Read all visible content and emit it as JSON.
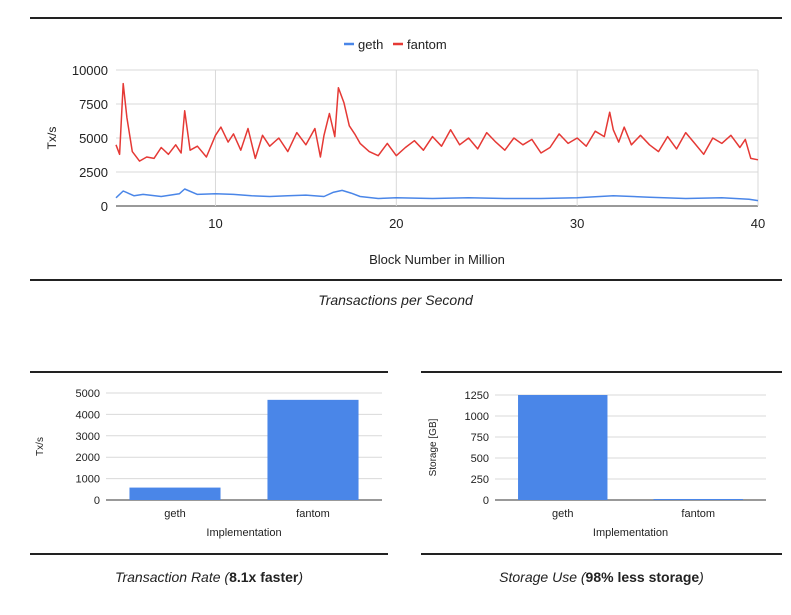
{
  "colors": {
    "geth": "#4a86e8",
    "fantom": "#e53935",
    "bar": "#4a86e8",
    "grid": "#d9d9d9"
  },
  "chart_data": [
    {
      "type": "line",
      "title": "",
      "xlabel": "Block Number in Million",
      "ylabel": "Tx/s",
      "xlim": [
        4.5,
        40
      ],
      "ylim": [
        0,
        10000
      ],
      "xticks": [
        "10",
        "20",
        "30",
        "40"
      ],
      "yticks": [
        "0",
        "2500",
        "5000",
        "7500",
        "10000"
      ],
      "legend": [
        "geth",
        "fantom"
      ],
      "legend_position": "top",
      "series": [
        {
          "name": "geth",
          "color": "#4a86e8",
          "x": [
            4.5,
            4.9,
            5.5,
            6,
            7,
            8,
            8.3,
            9,
            10,
            11,
            12,
            13,
            14,
            15,
            16,
            16.5,
            17,
            17.5,
            18,
            19,
            20,
            22,
            24,
            26,
            28,
            30,
            32,
            34,
            36,
            38,
            39.5,
            40
          ],
          "y": [
            600,
            1100,
            750,
            850,
            700,
            900,
            1250,
            850,
            900,
            850,
            750,
            700,
            750,
            800,
            700,
            1000,
            1150,
            950,
            700,
            550,
            600,
            550,
            600,
            550,
            550,
            600,
            750,
            650,
            550,
            600,
            500,
            400
          ]
        },
        {
          "name": "fantom",
          "color": "#e53935",
          "x": [
            4.5,
            4.7,
            4.9,
            5.1,
            5.4,
            5.8,
            6.2,
            6.6,
            7,
            7.4,
            7.8,
            8.1,
            8.3,
            8.6,
            9,
            9.5,
            10,
            10.3,
            10.7,
            11,
            11.4,
            11.8,
            12.2,
            12.6,
            13,
            13.5,
            14,
            14.5,
            15,
            15.5,
            15.8,
            16,
            16.3,
            16.6,
            16.8,
            17.1,
            17.4,
            17.7,
            18,
            18.5,
            19,
            19.5,
            20,
            20.5,
            21,
            21.5,
            22,
            22.5,
            23,
            23.5,
            24,
            24.5,
            25,
            25.5,
            26,
            26.5,
            27,
            27.5,
            28,
            28.5,
            29,
            29.5,
            30,
            30.5,
            31,
            31.5,
            31.8,
            32,
            32.3,
            32.6,
            33,
            33.5,
            34,
            34.5,
            35,
            35.5,
            36,
            36.5,
            37,
            37.5,
            38,
            38.5,
            39,
            39.3,
            39.6,
            40
          ],
          "y": [
            4500,
            3800,
            9000,
            6500,
            4000,
            3300,
            3600,
            3500,
            4300,
            3800,
            4500,
            3900,
            7000,
            4100,
            4400,
            3600,
            5200,
            5800,
            4700,
            5300,
            4100,
            5700,
            3500,
            5200,
            4400,
            5000,
            4000,
            5400,
            4500,
            5700,
            3600,
            5200,
            6800,
            5100,
            8700,
            7600,
            5900,
            5300,
            4600,
            4000,
            3700,
            4600,
            3700,
            4300,
            4800,
            4100,
            5100,
            4400,
            5600,
            4500,
            5000,
            4200,
            5400,
            4700,
            4100,
            5000,
            4500,
            4900,
            3900,
            4300,
            5300,
            4600,
            5000,
            4400,
            5500,
            5100,
            6900,
            5600,
            4700,
            5800,
            4500,
            5200,
            4500,
            4000,
            5100,
            4200,
            5400,
            4600,
            3800,
            5000,
            4600,
            5200,
            4300,
            4900,
            3500,
            3400
          ]
        }
      ]
    },
    {
      "type": "bar",
      "title": "",
      "xlabel": "Implementation",
      "ylabel": "Tx/s",
      "categories": [
        "geth",
        "fantom"
      ],
      "values": [
        580,
        4680
      ],
      "ylim": [
        0,
        5000
      ],
      "yticks": [
        "0",
        "1000",
        "2000",
        "3000",
        "4000",
        "5000"
      ]
    },
    {
      "type": "bar",
      "title": "",
      "xlabel": "Implementation",
      "ylabel": "Storage [GB]",
      "categories": [
        "geth",
        "fantom"
      ],
      "values": [
        1250,
        12
      ],
      "ylim": [
        0,
        1250
      ],
      "yticks": [
        "0",
        "250",
        "500",
        "750",
        "1000",
        "1250"
      ]
    }
  ],
  "captions": {
    "top": "Transactions per Second",
    "rate_prefix": "Transaction Rate (",
    "rate_bold": "8.1x faster",
    "rate_suffix": ")",
    "storage_prefix": "Storage Use (",
    "storage_bold": "98% less storage",
    "storage_suffix": ")"
  }
}
